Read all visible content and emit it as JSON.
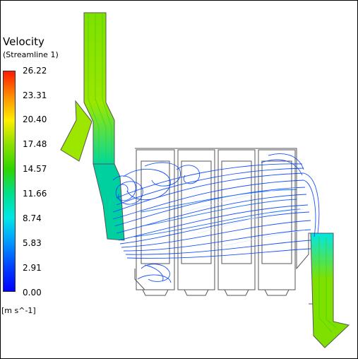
{
  "legend": {
    "title": "Velocity",
    "subtitle": "(Streamline  1)",
    "ticks": [
      "26.22",
      "23.31",
      "20.40",
      "17.48",
      "14.57",
      "11.66",
      "8.74",
      "5.83",
      "2.91",
      "0.00"
    ],
    "unit": "[m  s^-1]",
    "colormap": [
      "#ff1a00",
      "#ff8c00",
      "#ffee00",
      "#8ae000",
      "#2fd400",
      "#00e08a",
      "#00e6e6",
      "#0099ff",
      "#0040ff",
      "#0000ff"
    ]
  },
  "colors": {
    "high_flow": "#7fe000",
    "mid_flow": "#00e6a0",
    "low_flow": "#0040ff",
    "outline": "#555555"
  }
}
